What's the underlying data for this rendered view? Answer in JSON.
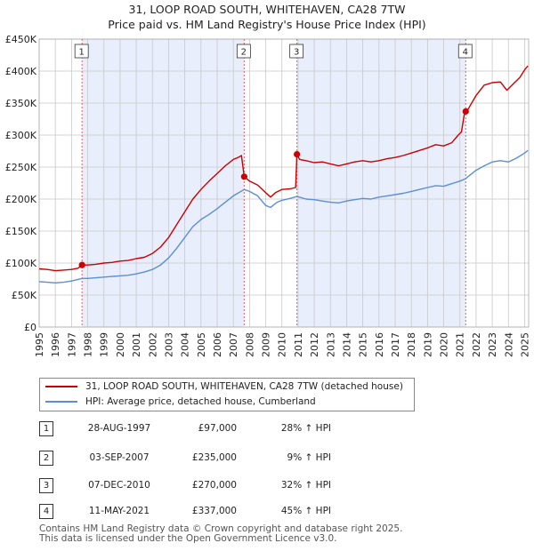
{
  "title_line1": "31, LOOP ROAD SOUTH, WHITEHAVEN, CA28 7TW",
  "title_line2": "Price paid vs. HM Land Registry's House Price Index (HPI)",
  "colors": {
    "property": "#cc0000",
    "hpi": "#5b8ed6",
    "shade": "#e8eefb",
    "grid": "#c8c8c8",
    "marker_line": "#e06060"
  },
  "chart_data": {
    "type": "line",
    "title": "Price paid vs. HM Land Registry's House Price Index (HPI)",
    "xlabel": "",
    "ylabel": "",
    "xlim": [
      1995,
      2025.25
    ],
    "ylim": [
      0,
      450000
    ],
    "grid": true,
    "x_ticks": [
      "1995",
      "1996",
      "1997",
      "1998",
      "1999",
      "2000",
      "2001",
      "2002",
      "2003",
      "2004",
      "2005",
      "2006",
      "2007",
      "2008",
      "2009",
      "2010",
      "2011",
      "2012",
      "2013",
      "2014",
      "2015",
      "2016",
      "2017",
      "2018",
      "2019",
      "2020",
      "2021",
      "2022",
      "2023",
      "2024",
      "2025"
    ],
    "y_ticks": [
      {
        "value": 0,
        "label": "£0"
      },
      {
        "value": 50000,
        "label": "£50K"
      },
      {
        "value": 100000,
        "label": "£100K"
      },
      {
        "value": 150000,
        "label": "£150K"
      },
      {
        "value": 200000,
        "label": "£200K"
      },
      {
        "value": 250000,
        "label": "£250K"
      },
      {
        "value": 300000,
        "label": "£300K"
      },
      {
        "value": 350000,
        "label": "£350K"
      },
      {
        "value": 400000,
        "label": "£400K"
      },
      {
        "value": 450000,
        "label": "£450K"
      }
    ],
    "series": [
      {
        "name": "31, LOOP ROAD SOUTH, WHITEHAVEN, CA28 7TW (detached house)",
        "color": "#cc0000",
        "points": [
          [
            1995.0,
            91000
          ],
          [
            1995.5,
            90000
          ],
          [
            1996.0,
            88000
          ],
          [
            1996.5,
            89000
          ],
          [
            1997.0,
            90000
          ],
          [
            1997.4,
            92000
          ],
          [
            1997.65,
            97000
          ],
          [
            1998.0,
            97000
          ],
          [
            1998.5,
            98000
          ],
          [
            1999.0,
            100000
          ],
          [
            1999.5,
            101000
          ],
          [
            2000.0,
            103000
          ],
          [
            2000.5,
            104000
          ],
          [
            2001.0,
            107000
          ],
          [
            2001.5,
            109000
          ],
          [
            2002.0,
            115000
          ],
          [
            2002.5,
            125000
          ],
          [
            2003.0,
            140000
          ],
          [
            2003.5,
            160000
          ],
          [
            2004.0,
            180000
          ],
          [
            2004.5,
            200000
          ],
          [
            2005.0,
            215000
          ],
          [
            2005.5,
            228000
          ],
          [
            2006.0,
            240000
          ],
          [
            2006.5,
            252000
          ],
          [
            2007.0,
            262000
          ],
          [
            2007.3,
            265000
          ],
          [
            2007.5,
            268000
          ],
          [
            2007.67,
            235000
          ],
          [
            2008.0,
            228000
          ],
          [
            2008.5,
            222000
          ],
          [
            2009.0,
            210000
          ],
          [
            2009.3,
            203000
          ],
          [
            2009.6,
            210000
          ],
          [
            2010.0,
            215000
          ],
          [
            2010.5,
            216000
          ],
          [
            2010.85,
            218000
          ],
          [
            2010.93,
            270000
          ],
          [
            2011.1,
            262000
          ],
          [
            2011.5,
            260000
          ],
          [
            2012.0,
            257000
          ],
          [
            2012.5,
            258000
          ],
          [
            2013.0,
            255000
          ],
          [
            2013.5,
            252000
          ],
          [
            2014.0,
            255000
          ],
          [
            2014.5,
            258000
          ],
          [
            2015.0,
            260000
          ],
          [
            2015.5,
            258000
          ],
          [
            2016.0,
            260000
          ],
          [
            2016.5,
            263000
          ],
          [
            2017.0,
            265000
          ],
          [
            2017.5,
            268000
          ],
          [
            2018.0,
            272000
          ],
          [
            2018.5,
            276000
          ],
          [
            2019.0,
            280000
          ],
          [
            2019.5,
            285000
          ],
          [
            2020.0,
            283000
          ],
          [
            2020.5,
            288000
          ],
          [
            2020.9,
            300000
          ],
          [
            2021.1,
            305000
          ],
          [
            2021.3,
            337000
          ],
          [
            2021.5,
            340000
          ],
          [
            2022.0,
            362000
          ],
          [
            2022.5,
            378000
          ],
          [
            2023.0,
            382000
          ],
          [
            2023.5,
            383000
          ],
          [
            2023.9,
            370000
          ],
          [
            2024.3,
            380000
          ],
          [
            2024.7,
            390000
          ],
          [
            2025.0,
            402000
          ],
          [
            2025.2,
            408000
          ]
        ]
      },
      {
        "name": "HPI: Average price, detached house, Cumberland",
        "color": "#5b8ed6",
        "points": [
          [
            1995.0,
            71000
          ],
          [
            1995.5,
            70000
          ],
          [
            1996.0,
            69000
          ],
          [
            1996.5,
            70000
          ],
          [
            1997.0,
            72000
          ],
          [
            1997.65,
            76000
          ],
          [
            1998.0,
            76000
          ],
          [
            1998.5,
            77000
          ],
          [
            1999.0,
            78000
          ],
          [
            1999.5,
            79000
          ],
          [
            2000.0,
            80000
          ],
          [
            2000.5,
            81000
          ],
          [
            2001.0,
            83000
          ],
          [
            2001.5,
            86000
          ],
          [
            2002.0,
            90000
          ],
          [
            2002.5,
            97000
          ],
          [
            2003.0,
            108000
          ],
          [
            2003.5,
            123000
          ],
          [
            2004.0,
            140000
          ],
          [
            2004.5,
            157000
          ],
          [
            2005.0,
            168000
          ],
          [
            2005.5,
            176000
          ],
          [
            2006.0,
            185000
          ],
          [
            2006.5,
            195000
          ],
          [
            2007.0,
            205000
          ],
          [
            2007.67,
            215000
          ],
          [
            2008.0,
            212000
          ],
          [
            2008.5,
            205000
          ],
          [
            2009.0,
            190000
          ],
          [
            2009.3,
            187000
          ],
          [
            2009.7,
            195000
          ],
          [
            2010.0,
            198000
          ],
          [
            2010.5,
            201000
          ],
          [
            2010.93,
            204000
          ],
          [
            2011.5,
            200000
          ],
          [
            2012.0,
            199000
          ],
          [
            2012.5,
            197000
          ],
          [
            2013.0,
            195000
          ],
          [
            2013.5,
            194000
          ],
          [
            2014.0,
            197000
          ],
          [
            2014.5,
            199000
          ],
          [
            2015.0,
            201000
          ],
          [
            2015.5,
            200000
          ],
          [
            2016.0,
            203000
          ],
          [
            2016.5,
            205000
          ],
          [
            2017.0,
            207000
          ],
          [
            2017.5,
            209000
          ],
          [
            2018.0,
            212000
          ],
          [
            2018.5,
            215000
          ],
          [
            2019.0,
            218000
          ],
          [
            2019.5,
            221000
          ],
          [
            2020.0,
            220000
          ],
          [
            2020.5,
            224000
          ],
          [
            2021.0,
            228000
          ],
          [
            2021.36,
            232000
          ],
          [
            2021.5,
            235000
          ],
          [
            2022.0,
            245000
          ],
          [
            2022.5,
            252000
          ],
          [
            2023.0,
            258000
          ],
          [
            2023.5,
            260000
          ],
          [
            2024.0,
            258000
          ],
          [
            2024.5,
            264000
          ],
          [
            2025.0,
            272000
          ],
          [
            2025.2,
            276000
          ]
        ]
      }
    ],
    "sales": [
      {
        "label": "1",
        "x": 1997.65,
        "price": 97000
      },
      {
        "label": "2",
        "x": 2007.67,
        "price": 235000
      },
      {
        "label": "3",
        "x": 2010.93,
        "price": 270000
      },
      {
        "label": "4",
        "x": 2021.36,
        "price": 337000
      }
    ],
    "shaded_ranges": [
      [
        1997.65,
        2007.67
      ],
      [
        2010.93,
        2021.36
      ]
    ]
  },
  "legend": {
    "property_label": "31, LOOP ROAD SOUTH, WHITEHAVEN, CA28 7TW (detached house)",
    "hpi_label": "HPI: Average price, detached house, Cumberland"
  },
  "sales_table": [
    {
      "num": "1",
      "date": "28-AUG-1997",
      "price": "£97,000",
      "hpi": "28% ↑ HPI"
    },
    {
      "num": "2",
      "date": "03-SEP-2007",
      "price": "£235,000",
      "hpi": "9% ↑ HPI"
    },
    {
      "num": "3",
      "date": "07-DEC-2010",
      "price": "£270,000",
      "hpi": "32% ↑ HPI"
    },
    {
      "num": "4",
      "date": "11-MAY-2021",
      "price": "£337,000",
      "hpi": "45% ↑ HPI"
    }
  ],
  "footer_line1": "Contains HM Land Registry data © Crown copyright and database right 2025.",
  "footer_line2": "This data is licensed under the Open Government Licence v3.0."
}
